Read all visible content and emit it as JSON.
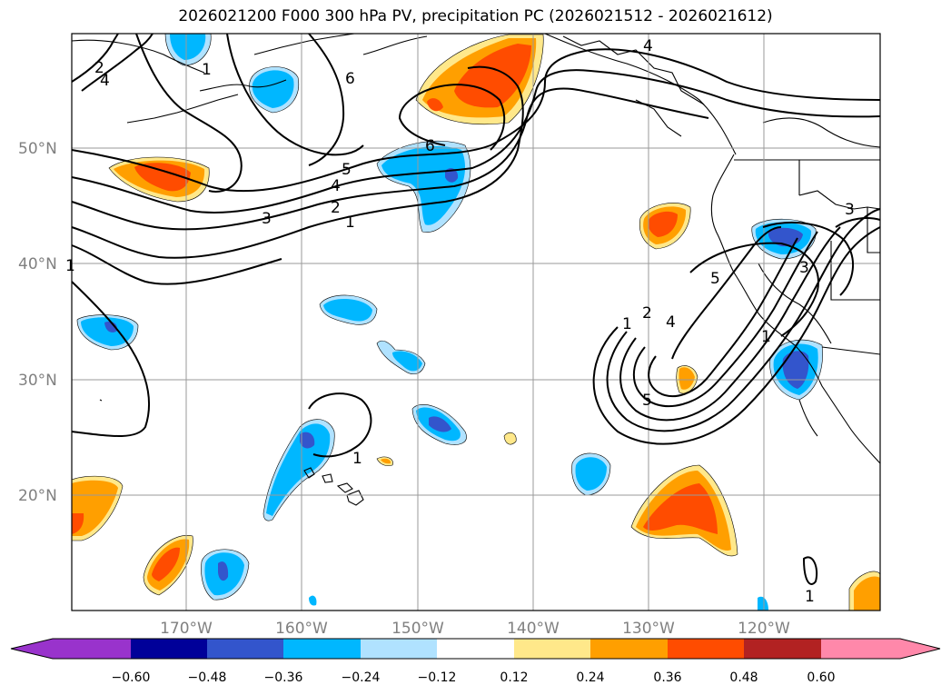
{
  "title": "2026021200 F000 300 hPa PV, precipitation PC (2026021512 - 2026021612)",
  "lat_labels": [
    "50°N",
    "40°N",
    "30°N",
    "20°N"
  ],
  "lon_labels": [
    "170°W",
    "160°W",
    "150°W",
    "140°W",
    "130°W",
    "120°W"
  ],
  "contour_labels": [
    "1",
    "2",
    "3",
    "4",
    "5",
    "6",
    "1",
    "2",
    "3",
    "4",
    "5",
    "6",
    "1",
    "2",
    "3",
    "4",
    "5",
    "1",
    "4",
    "1",
    "1",
    "1"
  ],
  "colorbar": {
    "ticks": [
      "−0.60",
      "−0.48",
      "−0.36",
      "−0.24",
      "−0.12",
      "0.12",
      "0.24",
      "0.36",
      "0.48",
      "0.60"
    ],
    "colors": [
      "#9933cc",
      "#000099",
      "#3355cc",
      "#00b7ff",
      "#b0e2ff",
      "#ffffff",
      "#ffe88a",
      "#ff9f00",
      "#ff4c00",
      "#b22222",
      "#ff88aa"
    ]
  },
  "shading_colors": {
    "neg_light": "#b0e2ff",
    "neg_mid": "#00b7ff",
    "neg_strong": "#3355cc",
    "pos_light": "#ffe88a",
    "pos_mid": "#ff9f00",
    "pos_strong": "#ff4c00"
  }
}
